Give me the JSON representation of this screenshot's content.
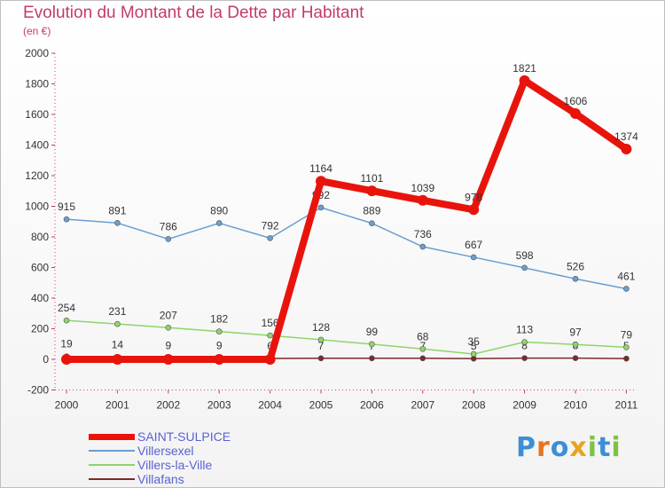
{
  "title": "Evolution du Montant de la Dette par Habitant",
  "subtitle": "(en €)",
  "brand": {
    "letters": [
      "P",
      "r",
      "o",
      "x",
      "i",
      "t",
      "i"
    ],
    "colors": [
      "#3b8fd6",
      "#e8731f",
      "#3b8fd6",
      "#e8a31f",
      "#7fc242",
      "#3b8fd6",
      "#7fc242"
    ]
  },
  "chart_data": {
    "type": "line",
    "categories": [
      "2000",
      "2001",
      "2002",
      "2003",
      "2004",
      "2005",
      "2006",
      "2007",
      "2008",
      "2009",
      "2010",
      "2011"
    ],
    "ylim": [
      -200,
      2000
    ],
    "yticks": [
      -200,
      0,
      200,
      400,
      600,
      800,
      1000,
      1200,
      1400,
      1600,
      1800,
      2000
    ],
    "grid": false,
    "legend_position": "bottom-left",
    "series": [
      {
        "name": "Villafans",
        "color": "#7a2a2a",
        "values": [
          19,
          14,
          9,
          9,
          6,
          7,
          7,
          7,
          5,
          8,
          8,
          5
        ]
      },
      {
        "name": "Villers-la-Ville",
        "color": "#8fd46a",
        "values": [
          254,
          231,
          207,
          182,
          156,
          128,
          99,
          68,
          35,
          113,
          97,
          79
        ]
      },
      {
        "name": "Villersexel",
        "color": "#6a9fd0",
        "values": [
          915,
          891,
          786,
          890,
          792,
          992,
          889,
          736,
          667,
          598,
          526,
          461
        ]
      },
      {
        "name": "SAINT-SULPICE",
        "color": "#e8140c",
        "values": [
          0,
          0,
          0,
          0,
          0,
          1164,
          1101,
          1039,
          978,
          1821,
          1606,
          1374
        ],
        "labels": [
          "",
          "",
          "",
          "",
          "",
          "1164",
          "1101",
          "1039",
          "978",
          "1821",
          "1606",
          "1374"
        ]
      }
    ]
  }
}
